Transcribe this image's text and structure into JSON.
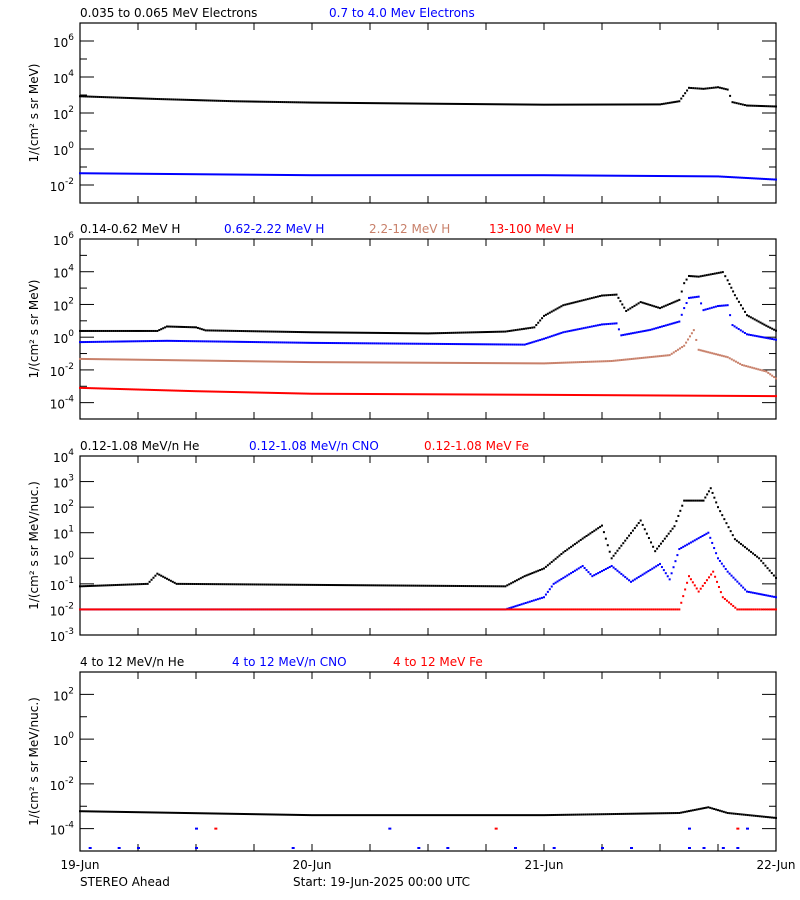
{
  "footer": {
    "mission": "STEREO Ahead",
    "start": "Start: 19-Jun-2025 00:00 UTC"
  },
  "xaxis": {
    "xlim": [
      "2025-06-19T00:00",
      "2025-06-22T00:00"
    ],
    "ticklabels": [
      "19-Jun",
      "20-Jun",
      "21-Jun",
      "22-Jun"
    ],
    "minor_tick_hours": 6
  },
  "colors": {
    "black": "#000000",
    "blue": "#0000ff",
    "brown": "#c8806a",
    "red": "#ff0000"
  },
  "chart_data": [
    {
      "type": "scatter",
      "yscale": "log",
      "ylabel": "1/(cm² s sr MeV)",
      "ylim": [
        0.001,
        10000000
      ],
      "ytick_exponents": [
        -2,
        0,
        2,
        4,
        6
      ],
      "grid": false,
      "series": [
        {
          "name": "0.035 to 0.065 MeV Electrons",
          "color": "#000000",
          "points": [
            [
              "2025-06-19T00:00",
              850
            ],
            [
              "2025-06-19T08:00",
              600
            ],
            [
              "2025-06-19T16:00",
              450
            ],
            [
              "2025-06-20T00:00",
              380
            ],
            [
              "2025-06-20T12:00",
              330
            ],
            [
              "2025-06-21T00:00",
              290
            ],
            [
              "2025-06-21T12:00",
              300
            ],
            [
              "2025-06-21T14:00",
              450
            ],
            [
              "2025-06-21T15:00",
              2500
            ],
            [
              "2025-06-21T16:30",
              2200
            ],
            [
              "2025-06-21T18:00",
              2700
            ],
            [
              "2025-06-21T19:00",
              2000
            ],
            [
              "2025-06-21T19:30",
              400
            ],
            [
              "2025-06-21T21:00",
              260
            ],
            [
              "2025-06-22T00:00",
              230
            ]
          ]
        },
        {
          "name": "0.7 to 4.0 Mev Electrons",
          "color": "#0000ff",
          "points": [
            [
              "2025-06-19T00:00",
              0.045
            ],
            [
              "2025-06-20T00:00",
              0.035
            ],
            [
              "2025-06-21T00:00",
              0.035
            ],
            [
              "2025-06-21T18:00",
              0.03
            ],
            [
              "2025-06-22T00:00",
              0.02
            ]
          ]
        }
      ]
    },
    {
      "type": "scatter",
      "yscale": "log",
      "ylabel": "1/(cm² s sr MeV)",
      "ylim": [
        1e-05,
        1000000
      ],
      "ytick_exponents": [
        -4,
        -2,
        0,
        2,
        4,
        6
      ],
      "grid": false,
      "series": [
        {
          "name": "0.14-0.62 MeV H",
          "color": "#000000",
          "points": [
            [
              "2025-06-19T00:00",
              2.4
            ],
            [
              "2025-06-19T08:00",
              2.4
            ],
            [
              "2025-06-19T09:00",
              4.5
            ],
            [
              "2025-06-19T12:00",
              4
            ],
            [
              "2025-06-19T13:00",
              2.6
            ],
            [
              "2025-06-20T00:00",
              2
            ],
            [
              "2025-06-20T12:00",
              1.7
            ],
            [
              "2025-06-20T20:00",
              2.2
            ],
            [
              "2025-06-20T23:00",
              4
            ],
            [
              "2025-06-21T00:00",
              20
            ],
            [
              "2025-06-21T02:00",
              90
            ],
            [
              "2025-06-21T06:00",
              350
            ],
            [
              "2025-06-21T07:30",
              400
            ],
            [
              "2025-06-21T08:30",
              40
            ],
            [
              "2025-06-21T10:00",
              140
            ],
            [
              "2025-06-21T12:00",
              60
            ],
            [
              "2025-06-21T14:00",
              190
            ],
            [
              "2025-06-21T14:30",
              2000
            ],
            [
              "2025-06-21T15:00",
              5500
            ],
            [
              "2025-06-21T16:00",
              5000
            ],
            [
              "2025-06-21T18:30",
              9500
            ],
            [
              "2025-06-21T19:00",
              3000
            ],
            [
              "2025-06-21T19:45",
              370
            ],
            [
              "2025-06-21T21:00",
              22
            ],
            [
              "2025-06-21T23:00",
              5
            ],
            [
              "2025-06-22T00:00",
              2.5
            ]
          ]
        },
        {
          "name": "0.62-2.22 MeV H",
          "color": "#0000ff",
          "points": [
            [
              "2025-06-19T00:00",
              0.5
            ],
            [
              "2025-06-19T09:00",
              0.6
            ],
            [
              "2025-06-20T00:00",
              0.45
            ],
            [
              "2025-06-20T22:00",
              0.35
            ],
            [
              "2025-06-21T00:00",
              0.8
            ],
            [
              "2025-06-21T02:00",
              2
            ],
            [
              "2025-06-21T06:00",
              6
            ],
            [
              "2025-06-21T07:30",
              7
            ],
            [
              "2025-06-21T08:00",
              1.3
            ],
            [
              "2025-06-21T11:00",
              2.8
            ],
            [
              "2025-06-21T14:00",
              9
            ],
            [
              "2025-06-21T14:30",
              60
            ],
            [
              "2025-06-21T15:00",
              250
            ],
            [
              "2025-06-21T16:00",
              300
            ],
            [
              "2025-06-21T16:30",
              45
            ],
            [
              "2025-06-21T18:00",
              80
            ],
            [
              "2025-06-21T19:00",
              90
            ],
            [
              "2025-06-21T19:30",
              5.5
            ],
            [
              "2025-06-21T21:00",
              1.5
            ],
            [
              "2025-06-22T00:00",
              0.7
            ]
          ]
        },
        {
          "name": "2.2-12 MeV H",
          "color": "#c8806a",
          "points": [
            [
              "2025-06-19T00:00",
              0.047
            ],
            [
              "2025-06-20T00:00",
              0.03
            ],
            [
              "2025-06-21T00:00",
              0.025
            ],
            [
              "2025-06-21T07:00",
              0.035
            ],
            [
              "2025-06-21T13:00",
              0.08
            ],
            [
              "2025-06-21T14:30",
              0.3
            ],
            [
              "2025-06-21T15:30",
              2.7
            ],
            [
              "2025-06-21T16:00",
              0.17
            ],
            [
              "2025-06-21T19:00",
              0.06
            ],
            [
              "2025-06-21T20:30",
              0.02
            ],
            [
              "2025-06-21T23:00",
              0.008
            ],
            [
              "2025-06-22T00:00",
              0.003
            ]
          ]
        },
        {
          "name": "13-100 MeV H",
          "color": "#ff0000",
          "points": [
            [
              "2025-06-19T00:00",
              0.0008
            ],
            [
              "2025-06-19T12:00",
              0.0005
            ],
            [
              "2025-06-20T00:00",
              0.00035
            ],
            [
              "2025-06-21T00:00",
              0.0003
            ],
            [
              "2025-06-22T00:00",
              0.00025
            ]
          ]
        }
      ]
    },
    {
      "type": "scatter",
      "yscale": "log",
      "ylabel": "1/(cm² s sr MeV/nuc.)",
      "ylim": [
        0.001,
        10000
      ],
      "ytick_exponents": [
        -3,
        -2,
        -1,
        0,
        1,
        2,
        3,
        4
      ],
      "grid": false,
      "series": [
        {
          "name": "0.12-1.08 MeV/n He",
          "color": "#000000",
          "points": [
            [
              "2025-06-19T00:00",
              0.08
            ],
            [
              "2025-06-19T07:00",
              0.1
            ],
            [
              "2025-06-19T08:00",
              0.25
            ],
            [
              "2025-06-19T10:00",
              0.1
            ],
            [
              "2025-06-20T20:00",
              0.08
            ],
            [
              "2025-06-20T22:00",
              0.2
            ],
            [
              "2025-06-21T00:00",
              0.4
            ],
            [
              "2025-06-21T02:00",
              1.7
            ],
            [
              "2025-06-21T04:00",
              5.9
            ],
            [
              "2025-06-21T06:00",
              19
            ],
            [
              "2025-06-21T07:00",
              1
            ],
            [
              "2025-06-21T10:00",
              30
            ],
            [
              "2025-06-21T11:30",
              1.9
            ],
            [
              "2025-06-21T13:30",
              18
            ],
            [
              "2025-06-21T14:30",
              180
            ],
            [
              "2025-06-21T16:30",
              180
            ],
            [
              "2025-06-21T17:15",
              550
            ],
            [
              "2025-06-21T18:00",
              100
            ],
            [
              "2025-06-21T19:45",
              5.6
            ],
            [
              "2025-06-21T22:15",
              1
            ],
            [
              "2025-06-22T00:00",
              0.17
            ]
          ]
        },
        {
          "name": "0.12-1.08 MeV/n CNO",
          "color": "#0000ff",
          "points": [
            [
              "2025-06-19T00:00",
              0.01
            ],
            [
              "2025-06-20T20:00",
              0.01
            ],
            [
              "2025-06-21T00:00",
              0.03
            ],
            [
              "2025-06-21T01:00",
              0.1
            ],
            [
              "2025-06-21T04:00",
              0.5
            ],
            [
              "2025-06-21T05:00",
              0.2
            ],
            [
              "2025-06-21T07:00",
              0.5
            ],
            [
              "2025-06-21T09:00",
              0.12
            ],
            [
              "2025-06-21T12:00",
              0.6
            ],
            [
              "2025-06-21T13:00",
              0.15
            ],
            [
              "2025-06-21T14:00",
              2.3
            ],
            [
              "2025-06-21T17:00",
              10
            ],
            [
              "2025-06-21T18:00",
              1
            ],
            [
              "2025-06-21T19:00",
              0.3
            ],
            [
              "2025-06-21T21:00",
              0.05
            ],
            [
              "2025-06-22T00:00",
              0.03
            ]
          ]
        },
        {
          "name": "0.12-1.08 MeV Fe",
          "color": "#ff0000",
          "points": [
            [
              "2025-06-19T00:00",
              0.01
            ],
            [
              "2025-06-21T14:00",
              0.01
            ],
            [
              "2025-06-21T15:00",
              0.2
            ],
            [
              "2025-06-21T16:00",
              0.05
            ],
            [
              "2025-06-21T17:30",
              0.3
            ],
            [
              "2025-06-21T18:30",
              0.03
            ],
            [
              "2025-06-21T20:00",
              0.01
            ],
            [
              "2025-06-22T00:00",
              0.01
            ]
          ]
        }
      ]
    },
    {
      "type": "scatter",
      "yscale": "log",
      "ylabel": "1/(cm² s sr MeV/nuc.)",
      "ylim": [
        1e-05,
        1000
      ],
      "ytick_exponents": [
        -4,
        -2,
        0,
        2
      ],
      "grid": false,
      "series": [
        {
          "name": "4 to 12 MeV/n He",
          "color": "#000000",
          "points": [
            [
              "2025-06-19T00:00",
              0.0006
            ],
            [
              "2025-06-20T00:00",
              0.0004
            ],
            [
              "2025-06-21T00:00",
              0.0004
            ],
            [
              "2025-06-21T14:00",
              0.0005
            ],
            [
              "2025-06-21T17:00",
              0.0009
            ],
            [
              "2025-06-21T19:00",
              0.0005
            ],
            [
              "2025-06-22T00:00",
              0.0003
            ]
          ]
        },
        {
          "name": "4 to 12 MeV/n CNO",
          "color": "#0000ff",
          "sparse": true,
          "points": [
            [
              "2025-06-19T01:00",
              1e-05
            ],
            [
              "2025-06-19T04:00",
              1e-05
            ],
            [
              "2025-06-19T06:00",
              1e-05
            ],
            [
              "2025-06-19T12:00",
              1e-05
            ],
            [
              "2025-06-19T22:00",
              1e-05
            ],
            [
              "2025-06-20T11:00",
              1e-05
            ],
            [
              "2025-06-20T14:00",
              1e-05
            ],
            [
              "2025-06-20T21:00",
              1e-05
            ],
            [
              "2025-06-21T01:00",
              1e-05
            ],
            [
              "2025-06-21T06:00",
              1e-05
            ],
            [
              "2025-06-21T09:00",
              1e-05
            ],
            [
              "2025-06-21T15:00",
              1e-05
            ],
            [
              "2025-06-21T16:30",
              1e-05
            ],
            [
              "2025-06-21T18:30",
              1e-05
            ],
            [
              "2025-06-21T20:00",
              1e-05
            ],
            [
              "2025-06-19T12:00",
              0.0001
            ],
            [
              "2025-06-20T08:00",
              0.0001
            ],
            [
              "2025-06-21T15:00",
              0.0001
            ],
            [
              "2025-06-21T21:00",
              0.0001
            ]
          ]
        },
        {
          "name": "4 to 12 MeV Fe",
          "color": "#ff0000",
          "sparse": true,
          "points": [
            [
              "2025-06-19T14:00",
              0.0001
            ],
            [
              "2025-06-20T19:00",
              0.0001
            ],
            [
              "2025-06-21T20:00",
              0.0001
            ]
          ]
        }
      ]
    }
  ]
}
